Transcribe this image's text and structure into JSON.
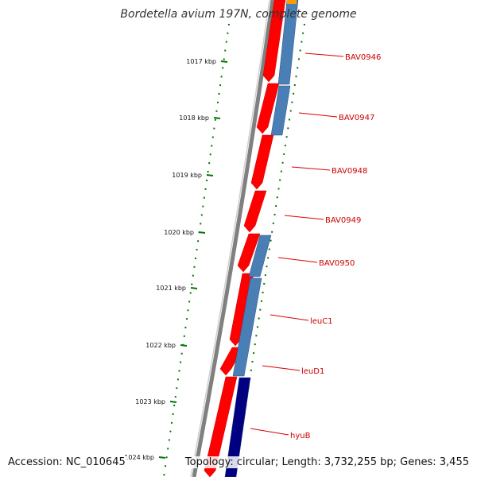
{
  "title": "Bordetella avium 197N, complete genome",
  "footer": {
    "accession": "Accession: NC_010645",
    "topology": "Topology: circular; Length: 3,732,255 bp; Genes: 3,455"
  },
  "colors": {
    "forward_gene": "#ff0000",
    "reverse_gene": "#4a7fb5",
    "reverse_gene_dark": "#000080",
    "accent_gene": "#ff9900",
    "backbone": "#808080",
    "tick": "#007700",
    "label": "#cc0000"
  },
  "scale_ticks": [
    "1017 kbp",
    "1018 kbp",
    "1019 kbp",
    "1020 kbp",
    "1021 kbp",
    "1022 kbp",
    "1023 kbp",
    "1024 kbp"
  ],
  "gene_labels": [
    "BAV0946",
    "BAV0947",
    "BAV0948",
    "BAV0949",
    "BAV0950",
    "leuC1",
    "leuD1",
    "hyuB"
  ]
}
